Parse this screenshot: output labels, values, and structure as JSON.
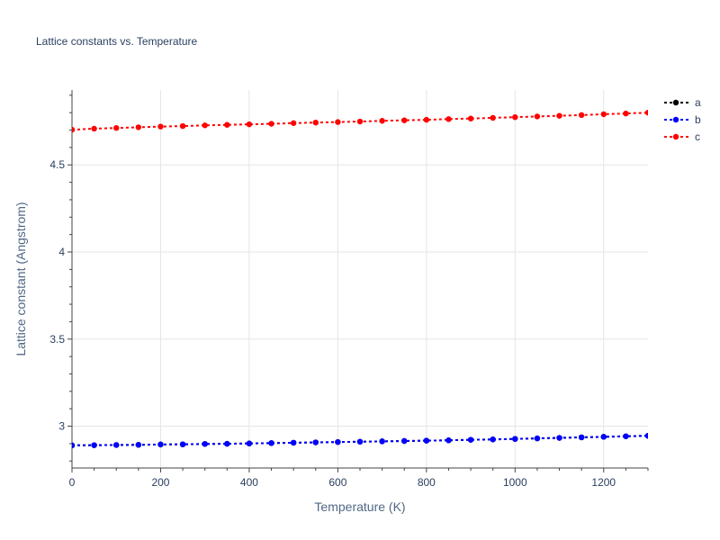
{
  "chart_data": {
    "type": "line",
    "title": "Lattice constants vs. Temperature",
    "xlabel": "Temperature (K)",
    "ylabel": "Lattice constant (Angstrom)",
    "xlim": [
      0,
      1300
    ],
    "ylim": [
      2.76,
      4.93
    ],
    "x_ticks": [
      0,
      200,
      400,
      600,
      800,
      1000,
      1200
    ],
    "y_ticks": [
      3,
      3.5,
      4,
      4.5
    ],
    "x_tick_labels": [
      "0",
      "200",
      "400",
      "600",
      "800",
      "1000",
      "1200"
    ],
    "y_tick_labels": [
      "3",
      "3.5",
      "4",
      "4.5"
    ],
    "grid": true,
    "legend_position": "top-right",
    "x": [
      0,
      50,
      100,
      150,
      200,
      250,
      300,
      350,
      400,
      450,
      500,
      550,
      600,
      650,
      700,
      750,
      800,
      850,
      900,
      950,
      1000,
      1050,
      1100,
      1150,
      1200,
      1250,
      1300
    ],
    "series": [
      {
        "name": "a",
        "color": "#000000",
        "values": [
          2.89,
          2.891,
          2.892,
          2.893,
          2.895,
          2.896,
          2.898,
          2.899,
          2.901,
          2.903,
          2.905,
          2.907,
          2.909,
          2.911,
          2.913,
          2.915,
          2.917,
          2.919,
          2.922,
          2.924,
          2.927,
          2.93,
          2.933,
          2.936,
          2.939,
          2.942,
          2.945
        ]
      },
      {
        "name": "b",
        "color": "#0000ff",
        "values": [
          2.89,
          2.891,
          2.892,
          2.893,
          2.895,
          2.896,
          2.898,
          2.899,
          2.901,
          2.903,
          2.905,
          2.907,
          2.909,
          2.911,
          2.913,
          2.915,
          2.917,
          2.919,
          2.922,
          2.924,
          2.927,
          2.93,
          2.933,
          2.936,
          2.939,
          2.942,
          2.945
        ]
      },
      {
        "name": "c",
        "color": "#ff0000",
        "values": [
          4.702,
          4.708,
          4.712,
          4.716,
          4.72,
          4.723,
          4.727,
          4.73,
          4.733,
          4.736,
          4.74,
          4.743,
          4.746,
          4.749,
          4.753,
          4.756,
          4.759,
          4.763,
          4.766,
          4.77,
          4.774,
          4.778,
          4.782,
          4.786,
          4.791,
          4.795,
          4.8
        ]
      }
    ]
  }
}
